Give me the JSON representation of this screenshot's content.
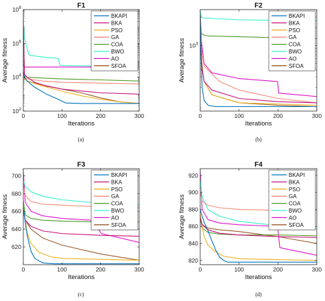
{
  "legend": [
    "BKAPI",
    "BKA",
    "PSO",
    "GA",
    "COA",
    "BWO",
    "AO",
    "SFOA"
  ],
  "colors": {
    "BKAPI": "#0072bd",
    "BKA": "#c8107b",
    "PSO": "#edb120",
    "GA": "#f08a78",
    "COA": "#4d9a24",
    "BWO": "#33f0c8",
    "AO": "#e010c8",
    "SFOA": "#9a5a28"
  },
  "chart_data": [
    {
      "type": "line",
      "title": "F1",
      "caption": "(a)",
      "xlabel": "Iterations",
      "ylabel": "Average fitness",
      "xlim": [
        0,
        300
      ],
      "yscale": "log",
      "ylim": [
        100,
        100000000
      ],
      "xticks": [
        0,
        100,
        200,
        300
      ],
      "xtick_labels": [
        "0",
        "100",
        "200",
        "300"
      ],
      "yticks": [
        100,
        10000,
        1000000,
        100000000
      ],
      "ytick_labels": [
        "10^2",
        "10^4",
        "10^6",
        "10^8"
      ],
      "legend_position": "top-right",
      "series": [
        {
          "name": "BKAPI",
          "x": [
            0,
            3,
            10,
            30,
            60,
            90,
            110,
            150,
            200,
            300
          ],
          "y": [
            20000,
            10000,
            6000,
            2500,
            1000,
            500,
            300,
            280,
            280,
            280
          ]
        },
        {
          "name": "BKA",
          "x": [
            0,
            3,
            10,
            30,
            60,
            100,
            200,
            300
          ],
          "y": [
            9000000,
            15000,
            10000,
            5000,
            3000,
            2000,
            1200,
            1000
          ]
        },
        {
          "name": "PSO",
          "x": [
            0,
            3,
            10,
            50,
            100,
            150,
            200,
            250,
            300
          ],
          "y": [
            15000,
            8000,
            6000,
            3000,
            1500,
            800,
            500,
            350,
            280
          ]
        },
        {
          "name": "GA",
          "x": [
            0,
            3,
            10,
            50,
            100,
            200,
            300
          ],
          "y": [
            30000,
            10000,
            8000,
            6000,
            5000,
            4500,
            4000
          ]
        },
        {
          "name": "COA",
          "x": [
            0,
            3,
            10,
            50,
            100,
            200,
            300
          ],
          "y": [
            18000,
            12000,
            10000,
            9000,
            8000,
            7000,
            6000
          ]
        },
        {
          "name": "BWO",
          "x": [
            0,
            3,
            10,
            15,
            30,
            60,
            90,
            95,
            200,
            300
          ],
          "y": [
            30000000,
            2000000,
            500000,
            200000,
            180000,
            150000,
            130000,
            50000,
            45000,
            40000
          ]
        },
        {
          "name": "AO",
          "x": [
            0,
            3,
            10,
            100,
            200,
            300
          ],
          "y": [
            60000,
            40000,
            40000,
            40000,
            40000,
            40000
          ]
        },
        {
          "name": "SFOA",
          "x": [
            0,
            3,
            10,
            50,
            100,
            150,
            200,
            250,
            300
          ],
          "y": [
            20000,
            9000,
            6000,
            3500,
            2000,
            1200,
            600,
            350,
            280
          ]
        }
      ]
    },
    {
      "type": "line",
      "title": "F2",
      "caption": "(b)",
      "xlabel": "Iterations",
      "ylabel": "Average fitness",
      "xlim": [
        0,
        300
      ],
      "yscale": "log",
      "ylim": [
        80,
        4000
      ],
      "xticks": [
        0,
        100,
        200,
        300
      ],
      "xtick_labels": [
        "0",
        "100",
        "200",
        "300"
      ],
      "yticks": [
        1000
      ],
      "ytick_labels": [
        "10^3"
      ],
      "legend_position": "top-right",
      "series": [
        {
          "name": "BKAPI",
          "x": [
            0,
            2,
            5,
            10,
            20,
            40,
            300
          ],
          "y": [
            3500,
            700,
            200,
            120,
            100,
            95,
            95
          ]
        },
        {
          "name": "BKA",
          "x": [
            0,
            2,
            5,
            10,
            30,
            100,
            200,
            300
          ],
          "y": [
            3000,
            900,
            400,
            250,
            180,
            130,
            115,
            110
          ]
        },
        {
          "name": "PSO",
          "x": [
            0,
            3,
            10,
            30,
            100,
            300
          ],
          "y": [
            3500,
            600,
            250,
            150,
            110,
            100
          ]
        },
        {
          "name": "GA",
          "x": [
            0,
            3,
            10,
            50,
            100,
            200,
            300
          ],
          "y": [
            3000,
            900,
            450,
            250,
            180,
            130,
            110
          ]
        },
        {
          "name": "COA",
          "x": [
            0,
            3,
            10,
            20,
            300
          ],
          "y": [
            3000,
            1600,
            1500,
            1450,
            1300
          ]
        },
        {
          "name": "BWO",
          "x": [
            0,
            3,
            10,
            50,
            100,
            200,
            300
          ],
          "y": [
            3800,
            3000,
            2900,
            2800,
            2700,
            2650,
            2600
          ]
        },
        {
          "name": "AO",
          "x": [
            0,
            3,
            10,
            30,
            100,
            199,
            202,
            300
          ],
          "y": [
            3500,
            1200,
            500,
            350,
            280,
            250,
            160,
            140
          ]
        },
        {
          "name": "SFOA",
          "x": [
            0,
            3,
            10,
            30,
            100,
            200,
            300
          ],
          "y": [
            3000,
            500,
            250,
            150,
            110,
            100,
            95
          ]
        }
      ]
    },
    {
      "type": "line",
      "title": "F3",
      "caption": "(c)",
      "xlabel": "Iterations",
      "ylabel": "Average fitness",
      "xlim": [
        0,
        300
      ],
      "ylim": [
        600,
        708
      ],
      "xticks": [
        0,
        100,
        200,
        300
      ],
      "xtick_labels": [
        "0",
        "100",
        "200",
        "300"
      ],
      "yticks": [
        620,
        640,
        660,
        680,
        700
      ],
      "ytick_labels": [
        "620",
        "640",
        "660",
        "680",
        "700"
      ],
      "legend_position": "top-right",
      "series": [
        {
          "name": "BKAPI",
          "x": [
            0,
            5,
            10,
            20,
            30,
            50,
            80,
            300
          ],
          "y": [
            665,
            648,
            633,
            615,
            607,
            602,
            601,
            601
          ]
        },
        {
          "name": "BKA",
          "x": [
            0,
            5,
            20,
            50,
            100,
            200,
            300
          ],
          "y": [
            660,
            650,
            643,
            638,
            635,
            633,
            632
          ]
        },
        {
          "name": "PSO",
          "x": [
            0,
            5,
            10,
            20,
            40,
            70,
            100,
            200,
            300
          ],
          "y": [
            662,
            650,
            636,
            624,
            614,
            609,
            607,
            606,
            605
          ]
        },
        {
          "name": "GA",
          "x": [
            0,
            5,
            20,
            50,
            100,
            200,
            300
          ],
          "y": [
            690,
            678,
            671,
            668,
            667,
            665,
            664
          ]
        },
        {
          "name": "COA",
          "x": [
            0,
            5,
            20,
            50,
            100,
            200,
            300
          ],
          "y": [
            672,
            656,
            652,
            650,
            649,
            648,
            648
          ]
        },
        {
          "name": "BWO",
          "x": [
            0,
            5,
            20,
            50,
            100,
            200,
            300
          ],
          "y": [
            695,
            688,
            682,
            677,
            673,
            669,
            667
          ]
        },
        {
          "name": "AO",
          "x": [
            0,
            5,
            20,
            50,
            100,
            180,
            202,
            300
          ],
          "y": [
            705,
            670,
            660,
            655,
            652,
            650,
            635,
            625
          ]
        },
        {
          "name": "SFOA",
          "x": [
            0,
            5,
            20,
            50,
            100,
            200,
            300
          ],
          "y": [
            660,
            650,
            640,
            630,
            622,
            612,
            605
          ]
        }
      ]
    },
    {
      "type": "line",
      "title": "F4",
      "caption": "(d)",
      "xlabel": "Iterations",
      "ylabel": "Average fitness",
      "xlim": [
        0,
        300
      ],
      "ylim": [
        815,
        928
      ],
      "xticks": [
        0,
        100,
        200,
        300
      ],
      "xtick_labels": [
        "0",
        "100",
        "200",
        "300"
      ],
      "yticks": [
        820,
        840,
        860,
        880,
        900,
        920
      ],
      "ytick_labels": [
        "820",
        "840",
        "860",
        "880",
        "900",
        "920"
      ],
      "legend_position": "top-right",
      "series": [
        {
          "name": "BKAPI",
          "x": [
            0,
            5,
            10,
            20,
            30,
            40,
            50,
            60,
            70,
            300
          ],
          "y": [
            880,
            872,
            865,
            855,
            843,
            832,
            824,
            820,
            818,
            818
          ]
        },
        {
          "name": "BKA",
          "x": [
            0,
            5,
            20,
            50,
            100,
            200,
            300
          ],
          "y": [
            870,
            862,
            856,
            852,
            850,
            848,
            847
          ]
        },
        {
          "name": "PSO",
          "x": [
            0,
            5,
            10,
            20,
            40,
            60,
            100,
            200,
            300
          ],
          "y": [
            875,
            860,
            848,
            838,
            830,
            825,
            822,
            821,
            820
          ]
        },
        {
          "name": "GA",
          "x": [
            0,
            5,
            20,
            50,
            100,
            200,
            300
          ],
          "y": [
            900,
            890,
            885,
            882,
            880,
            879,
            879
          ]
        },
        {
          "name": "COA",
          "x": [
            0,
            5,
            20,
            50,
            100,
            200,
            300
          ],
          "y": [
            870,
            858,
            853,
            851,
            850,
            850,
            849
          ]
        },
        {
          "name": "BWO",
          "x": [
            0,
            5,
            20,
            50,
            100,
            200,
            300
          ],
          "y": [
            915,
            895,
            880,
            872,
            866,
            861,
            857
          ]
        },
        {
          "name": "AO",
          "x": [
            0,
            5,
            20,
            50,
            100,
            199,
            205,
            300
          ],
          "y": [
            925,
            880,
            868,
            864,
            862,
            860,
            835,
            826
          ]
        },
        {
          "name": "SFOA",
          "x": [
            0,
            5,
            20,
            50,
            100,
            200,
            300
          ],
          "y": [
            870,
            862,
            858,
            856,
            854,
            848,
            840
          ]
        }
      ]
    }
  ]
}
